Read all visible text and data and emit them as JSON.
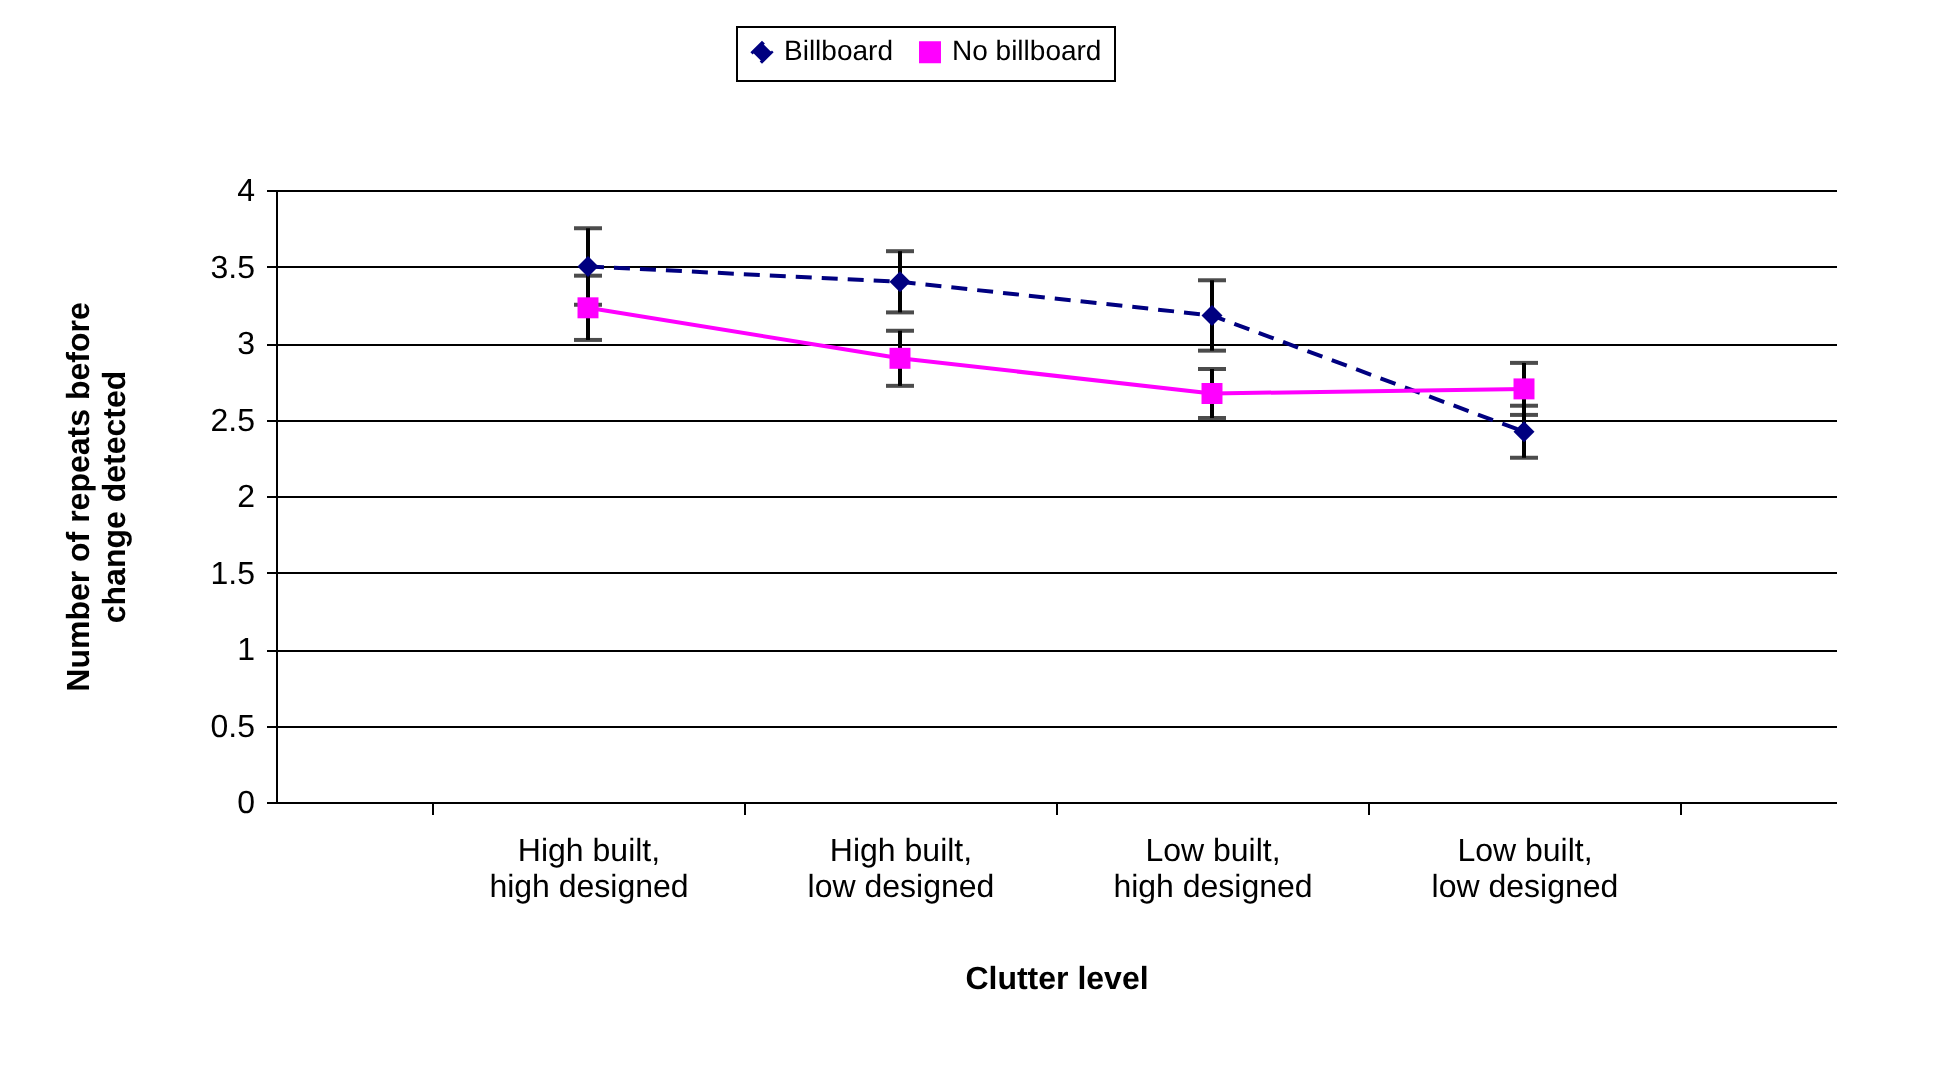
{
  "chart_data": {
    "type": "line",
    "xlabel": "Clutter level",
    "ylabel": "Number of repeats before change detected",
    "categories": [
      "High built, high designed",
      "High built, low designed",
      "Low built, high designed",
      "Low built, low designed"
    ],
    "series": [
      {
        "name": "Billboard",
        "color": "#000080",
        "values": [
          3.5,
          3.4,
          3.18,
          2.42
        ],
        "errors": [
          0.25,
          0.2,
          0.23,
          0.17
        ],
        "marker": "diamond",
        "line_style": "dashed"
      },
      {
        "name": "No billboard",
        "color": "#ff00ff",
        "values": [
          3.23,
          2.9,
          2.67,
          2.7
        ],
        "errors": [
          0.21,
          0.18,
          0.16,
          0.17
        ],
        "marker": "square",
        "line_style": "solid"
      }
    ],
    "ylim": [
      0,
      4
    ],
    "yticks": [
      0,
      0.5,
      1,
      1.5,
      2,
      2.5,
      3,
      3.5,
      4
    ],
    "grid": "y",
    "legend": "top"
  }
}
